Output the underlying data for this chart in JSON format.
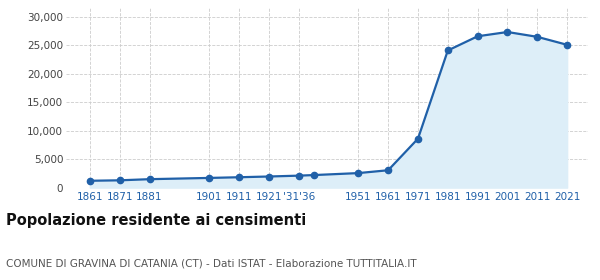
{
  "years": [
    1861,
    1871,
    1881,
    1901,
    1911,
    1921,
    1931,
    1936,
    1951,
    1961,
    1971,
    1981,
    1991,
    2001,
    2011,
    2021
  ],
  "population": [
    1200,
    1280,
    1480,
    1700,
    1820,
    1950,
    2100,
    2200,
    2550,
    3050,
    8600,
    24100,
    26600,
    27350,
    26500,
    25100
  ],
  "line_color": "#2060a8",
  "fill_color": "#ddeef8",
  "marker_size": 4.5,
  "grid_color": "#cccccc",
  "background_color": "#ffffff",
  "title": "Popolazione residente ai censimenti",
  "subtitle": "COMUNE DI GRAVINA DI CATANIA (CT) - Dati ISTAT - Elaborazione TUTTITALIA.IT",
  "title_fontsize": 10.5,
  "subtitle_fontsize": 7.5,
  "ylim": [
    0,
    31500
  ],
  "yticks": [
    0,
    5000,
    10000,
    15000,
    20000,
    25000,
    30000
  ],
  "xtick_positions": [
    1861,
    1871,
    1881,
    1901,
    1911,
    1921,
    1931,
    1951,
    1961,
    1971,
    1981,
    1991,
    2001,
    2011,
    2021
  ],
  "xtick_labels": [
    "1861",
    "1871",
    "1881",
    "1901",
    "1911",
    "1921",
    "'31'36",
    "1951",
    "1961",
    "1971",
    "1981",
    "1991",
    "2001",
    "2011",
    "2021"
  ],
  "xlim_left": 1853,
  "xlim_right": 2028
}
